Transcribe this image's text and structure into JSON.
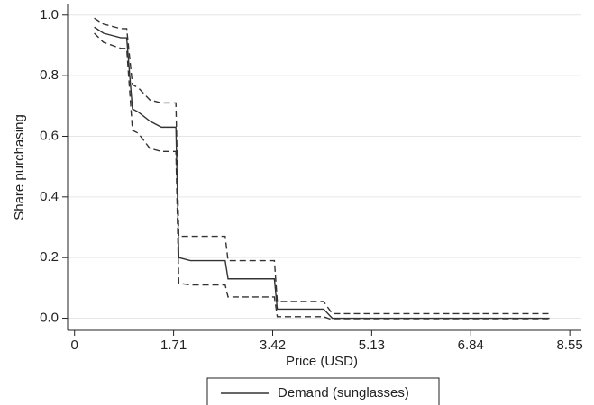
{
  "chart_data": {
    "type": "line",
    "x_label": "Price (USD)",
    "y_label": "Share purchasing",
    "x": [
      0.34,
      0.5,
      0.8,
      0.9,
      1.0,
      1.1,
      1.3,
      1.5,
      1.75,
      1.8,
      2.0,
      2.6,
      2.65,
      3.45,
      3.5,
      4.3,
      4.45,
      8.2
    ],
    "series": [
      {
        "name": "Demand (sunglasses)",
        "color": "#333333",
        "dash": false,
        "values": [
          0.96,
          0.94,
          0.925,
          0.925,
          0.69,
          0.68,
          0.65,
          0.63,
          0.63,
          0.2,
          0.19,
          0.19,
          0.13,
          0.13,
          0.03,
          0.03,
          0.0,
          0.0
        ]
      },
      {
        "color": "#333333",
        "dash": true,
        "values": [
          0.99,
          0.97,
          0.955,
          0.955,
          0.77,
          0.76,
          0.72,
          0.71,
          0.71,
          0.27,
          0.27,
          0.27,
          0.19,
          0.19,
          0.055,
          0.055,
          0.015,
          0.015
        ]
      },
      {
        "color": "#333333",
        "dash": true,
        "values": [
          0.94,
          0.91,
          0.89,
          0.89,
          0.62,
          0.61,
          0.56,
          0.55,
          0.55,
          0.115,
          0.11,
          0.11,
          0.07,
          0.07,
          0.005,
          0.005,
          -0.005,
          -0.005
        ]
      }
    ],
    "xlim": [
      -0.12,
      8.75
    ],
    "ylim": [
      -0.04,
      1.035
    ],
    "xticks": [
      0,
      1.71,
      3.42,
      5.13,
      6.84,
      8.55
    ],
    "yticks": [
      {
        "value": 0,
        "label": "0.0"
      },
      0.2,
      0.4,
      0.6,
      0.8,
      {
        "value": 1,
        "label": "1.0"
      }
    ],
    "grid": true,
    "legend": "bottom"
  }
}
